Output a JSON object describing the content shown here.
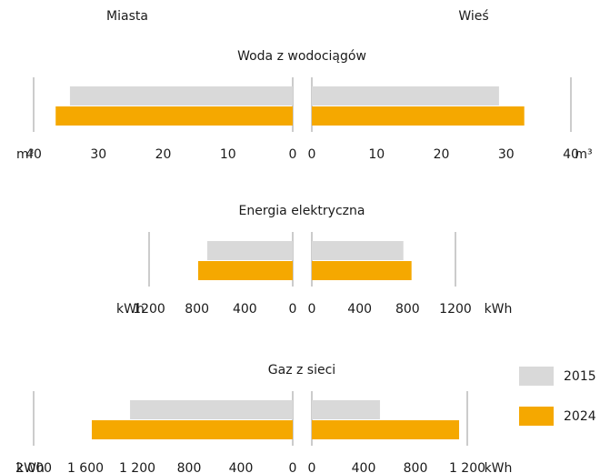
{
  "chart_data": [
    {
      "type": "butterfly",
      "title": "Woda z wodociągów",
      "unit": "m³",
      "categories": [
        "Miasta",
        "Wieś"
      ],
      "series": [
        {
          "name": "2015",
          "color": "#d9d9d9",
          "values": [
            34.4,
            28.9
          ]
        },
        {
          "name": "2024",
          "color": "#f5a800",
          "values": [
            36.6,
            32.8
          ]
        }
      ],
      "xlim": [
        0,
        40
      ],
      "xticks": [
        0,
        10,
        20,
        30,
        40
      ],
      "x2lim": [
        0,
        40
      ],
      "x2ticks": [
        0,
        10,
        20,
        30,
        40
      ]
    },
    {
      "type": "butterfly",
      "title": "Energia elektryczna",
      "unit": "kWh",
      "categories": [
        "Miasta",
        "Wieś"
      ],
      "series": [
        {
          "name": "2015",
          "color": "#d9d9d9",
          "values": [
            714,
            765
          ]
        },
        {
          "name": "2024",
          "color": "#f5a800",
          "values": [
            790,
            833
          ]
        }
      ],
      "xlim": [
        0,
        1200
      ],
      "xticks": [
        0,
        400,
        800,
        1200
      ],
      "x2lim": [
        0,
        1200
      ],
      "x2ticks": [
        0,
        400,
        800,
        1200
      ]
    },
    {
      "type": "butterfly",
      "title": "Gaz z sieci",
      "unit": "kWh",
      "categories": [
        "Miasta",
        "Wieś"
      ],
      "series": [
        {
          "name": "2015",
          "color": "#d9d9d9",
          "values": [
            1256,
            526
          ]
        },
        {
          "name": "2024",
          "color": "#f5a800",
          "values": [
            1551,
            1137
          ]
        }
      ],
      "xlim": [
        0,
        2000
      ],
      "xticks": [
        0,
        400,
        800,
        {
          "value": 1200,
          "label": "1 200"
        },
        {
          "value": 1600,
          "label": "1 600"
        },
        {
          "value": 2000,
          "label": "2 000"
        }
      ],
      "x2lim": [
        0,
        1200
      ],
      "x2ticks": [
        0,
        400,
        800,
        {
          "value": 1200,
          "label": "1 200"
        }
      ]
    }
  ]
}
